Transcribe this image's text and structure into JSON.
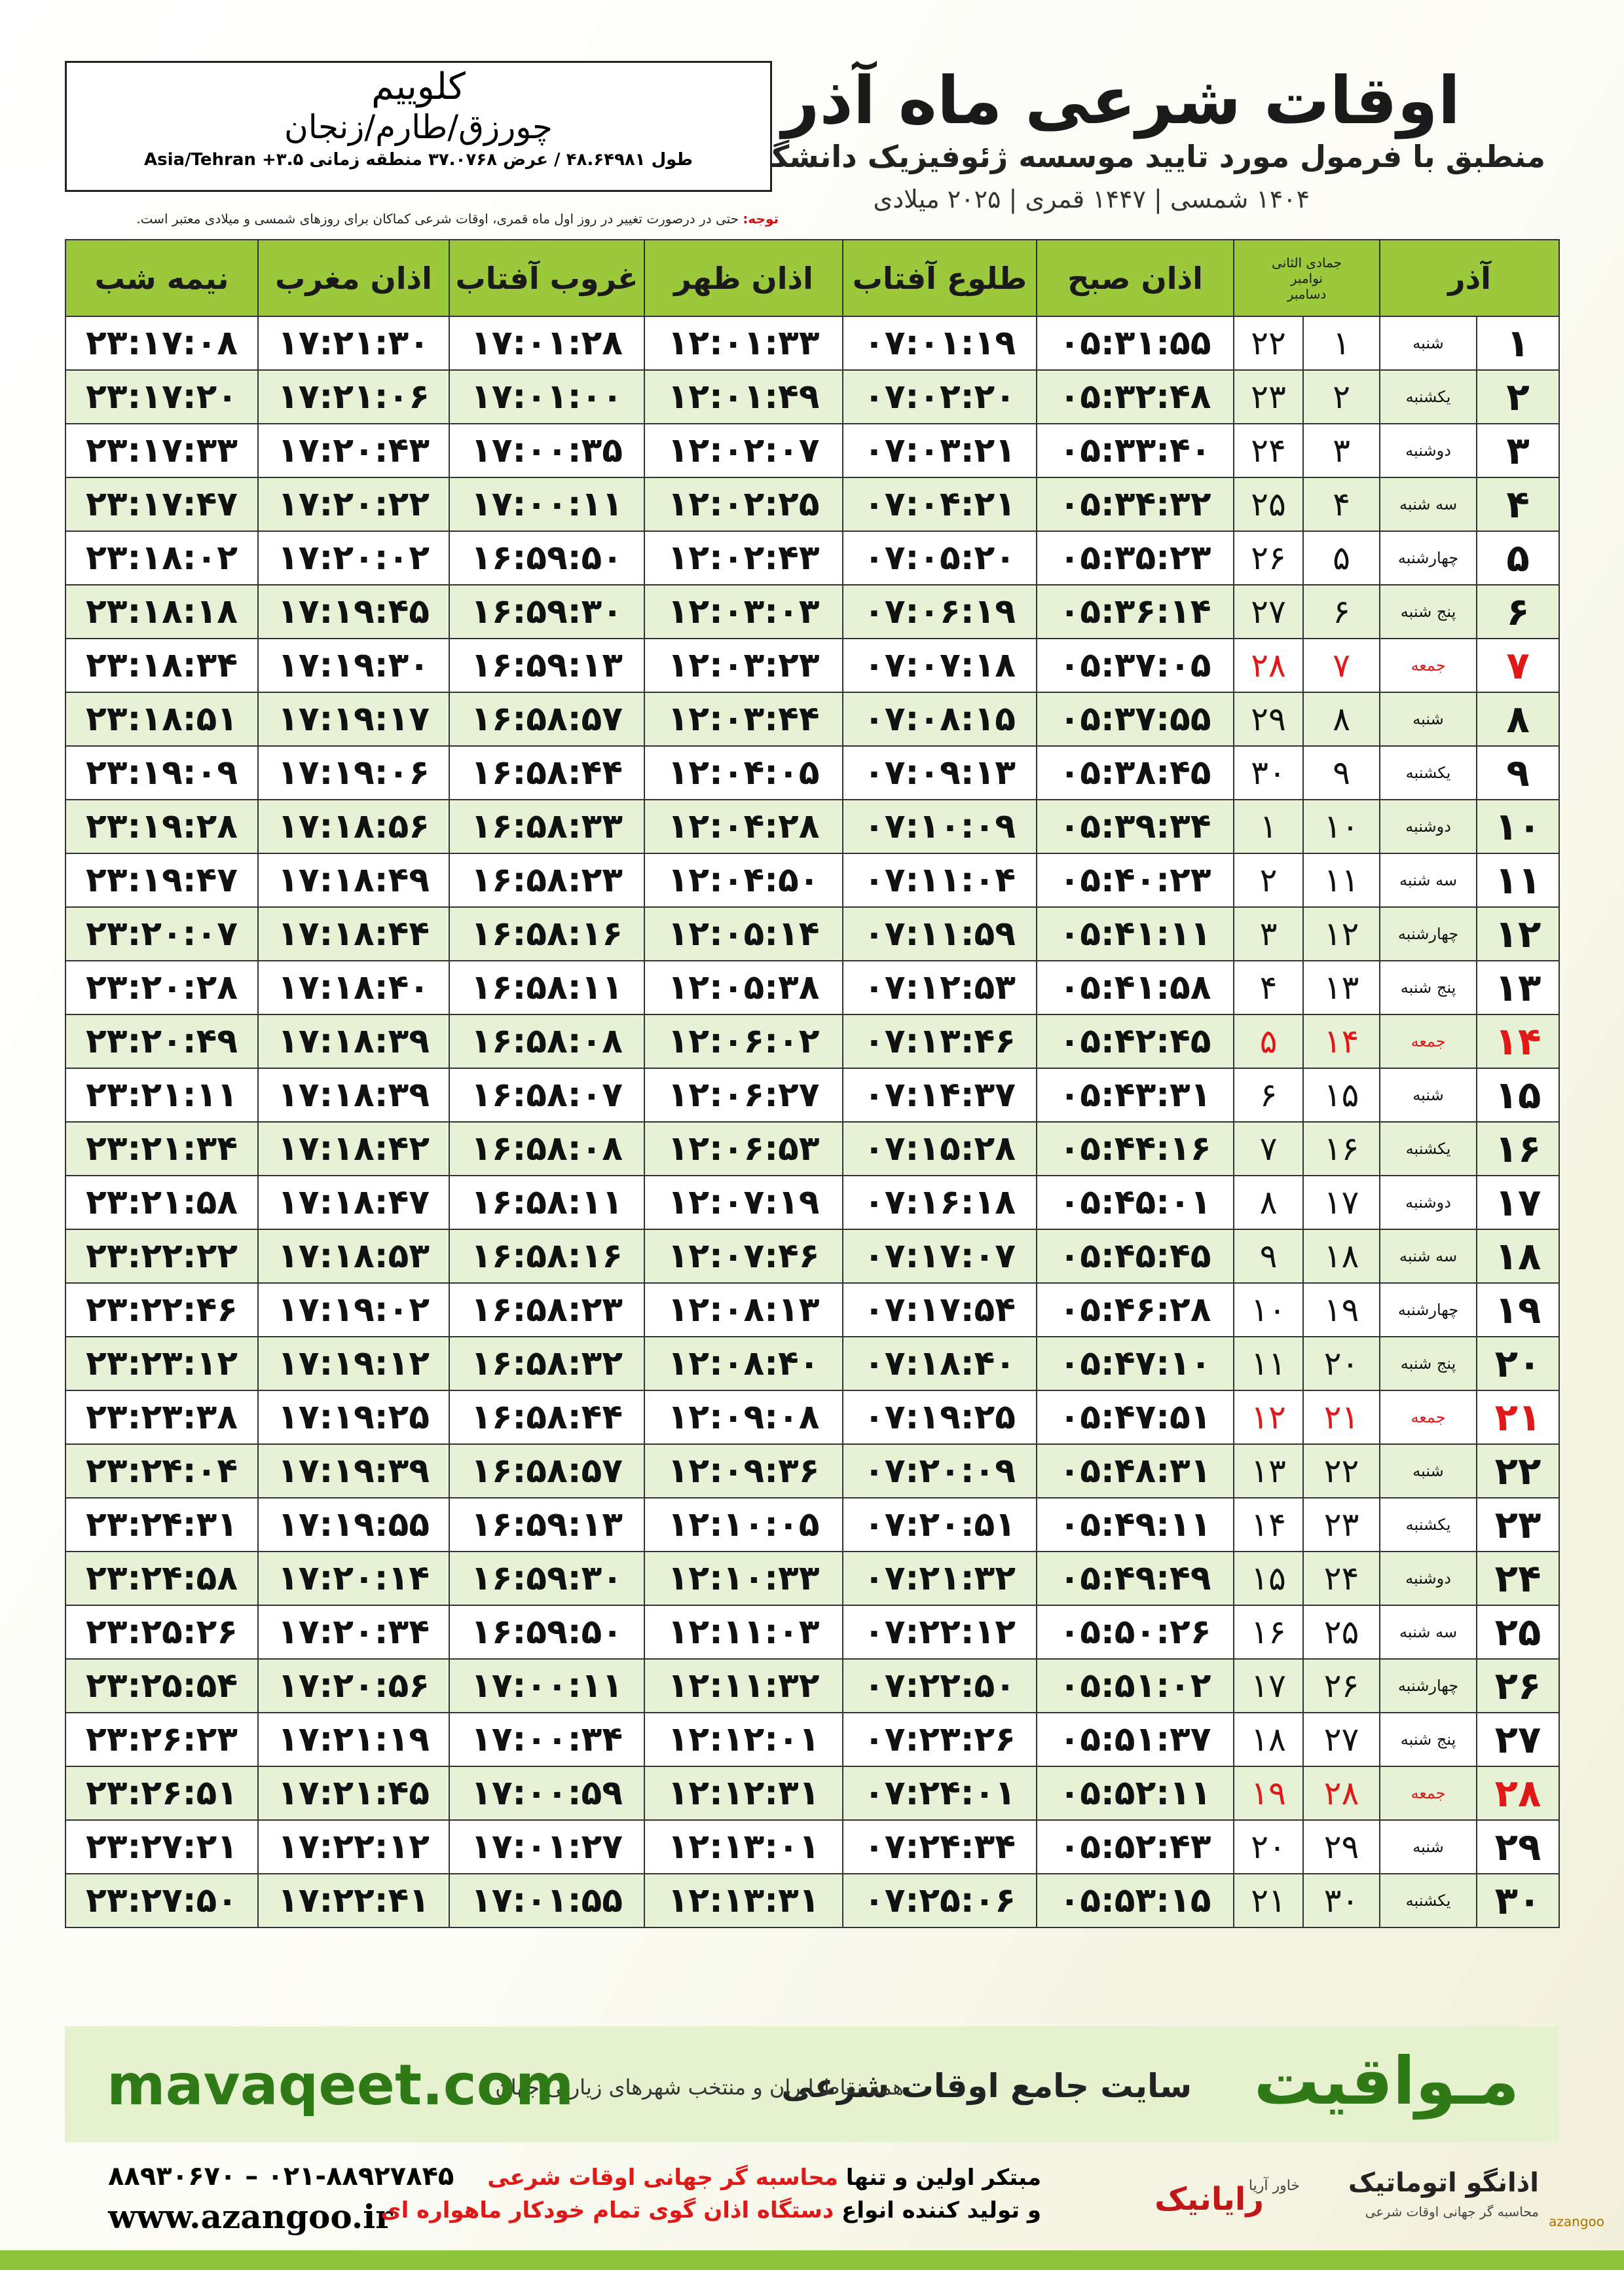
{
  "header": {
    "title": "اوقات شرعی ماه آذر",
    "subtitle": "منطبق با فرمول مورد تایید موسسه ژئوفیزیک دانشگاه تهران",
    "dates": "۱۴۰۴ شمسی | ۱۴۴۷ قمری | ۲۰۲۵ میلادی"
  },
  "location": {
    "name": "کلوییم",
    "region": "چورزق/طارم/زنجان",
    "coords": "طول ۴۸.۶۴۹۸۱ / عرض ۳۷.۰۷۶۸ منطقه زمانی ۳.۵+ Asia/Tehran"
  },
  "note": {
    "label": "توجه:",
    "text": "حتی در درصورت تغییر در روز اول ماه قمری، اوقات شرعی کماکان برای روزهای شمسی و میلادی معتبر است."
  },
  "table": {
    "header": {
      "month": "آذر",
      "lunar_month": "جمادی الثانی",
      "greg_months": [
        "نوامبر",
        "دسامبر"
      ],
      "times": [
        "اذان صبح",
        "طلوع آفتاب",
        "اذان ظهر",
        "غروب آفتاب",
        "اذان مغرب",
        "نیمه شب"
      ]
    },
    "rows": [
      [
        "۱",
        "شنبه",
        "۱",
        "۲۲",
        "۰۵:۳۱:۵۵",
        "۰۷:۰۱:۱۹",
        "۱۲:۰۱:۳۳",
        "۱۷:۰۱:۲۸",
        "۱۷:۲۱:۳۰",
        "۲۳:۱۷:۰۸"
      ],
      [
        "۲",
        "یکشنبه",
        "۲",
        "۲۳",
        "۰۵:۳۲:۴۸",
        "۰۷:۰۲:۲۰",
        "۱۲:۰۱:۴۹",
        "۱۷:۰۱:۰۰",
        "۱۷:۲۱:۰۶",
        "۲۳:۱۷:۲۰"
      ],
      [
        "۳",
        "دوشنبه",
        "۳",
        "۲۴",
        "۰۵:۳۳:۴۰",
        "۰۷:۰۳:۲۱",
        "۱۲:۰۲:۰۷",
        "۱۷:۰۰:۳۵",
        "۱۷:۲۰:۴۳",
        "۲۳:۱۷:۳۳"
      ],
      [
        "۴",
        "سه شنبه",
        "۴",
        "۲۵",
        "۰۵:۳۴:۳۲",
        "۰۷:۰۴:۲۱",
        "۱۲:۰۲:۲۵",
        "۱۷:۰۰:۱۱",
        "۱۷:۲۰:۲۲",
        "۲۳:۱۷:۴۷"
      ],
      [
        "۵",
        "چهارشنبه",
        "۵",
        "۲۶",
        "۰۵:۳۵:۲۳",
        "۰۷:۰۵:۲۰",
        "۱۲:۰۲:۴۳",
        "۱۶:۵۹:۵۰",
        "۱۷:۲۰:۰۲",
        "۲۳:۱۸:۰۲"
      ],
      [
        "۶",
        "پنج شنبه",
        "۶",
        "۲۷",
        "۰۵:۳۶:۱۴",
        "۰۷:۰۶:۱۹",
        "۱۲:۰۳:۰۳",
        "۱۶:۵۹:۳۰",
        "۱۷:۱۹:۴۵",
        "۲۳:۱۸:۱۸"
      ],
      [
        "۷",
        "جمعه",
        "۷",
        "۲۸",
        "۰۵:۳۷:۰۵",
        "۰۷:۰۷:۱۸",
        "۱۲:۰۳:۲۳",
        "۱۶:۵۹:۱۳",
        "۱۷:۱۹:۳۰",
        "۲۳:۱۸:۳۴"
      ],
      [
        "۸",
        "شنبه",
        "۸",
        "۲۹",
        "۰۵:۳۷:۵۵",
        "۰۷:۰۸:۱۵",
        "۱۲:۰۳:۴۴",
        "۱۶:۵۸:۵۷",
        "۱۷:۱۹:۱۷",
        "۲۳:۱۸:۵۱"
      ],
      [
        "۹",
        "یکشنبه",
        "۹",
        "۳۰",
        "۰۵:۳۸:۴۵",
        "۰۷:۰۹:۱۳",
        "۱۲:۰۴:۰۵",
        "۱۶:۵۸:۴۴",
        "۱۷:۱۹:۰۶",
        "۲۳:۱۹:۰۹"
      ],
      [
        "۱۰",
        "دوشنبه",
        "۱۰",
        "۱",
        "۰۵:۳۹:۳۴",
        "۰۷:۱۰:۰۹",
        "۱۲:۰۴:۲۸",
        "۱۶:۵۸:۳۳",
        "۱۷:۱۸:۵۶",
        "۲۳:۱۹:۲۸"
      ],
      [
        "۱۱",
        "سه شنبه",
        "۱۱",
        "۲",
        "۰۵:۴۰:۲۳",
        "۰۷:۱۱:۰۴",
        "۱۲:۰۴:۵۰",
        "۱۶:۵۸:۲۳",
        "۱۷:۱۸:۴۹",
        "۲۳:۱۹:۴۷"
      ],
      [
        "۱۲",
        "چهارشنبه",
        "۱۲",
        "۳",
        "۰۵:۴۱:۱۱",
        "۰۷:۱۱:۵۹",
        "۱۲:۰۵:۱۴",
        "۱۶:۵۸:۱۶",
        "۱۷:۱۸:۴۴",
        "۲۳:۲۰:۰۷"
      ],
      [
        "۱۳",
        "پنج شنبه",
        "۱۳",
        "۴",
        "۰۵:۴۱:۵۸",
        "۰۷:۱۲:۵۳",
        "۱۲:۰۵:۳۸",
        "۱۶:۵۸:۱۱",
        "۱۷:۱۸:۴۰",
        "۲۳:۲۰:۲۸"
      ],
      [
        "۱۴",
        "جمعه",
        "۱۴",
        "۵",
        "۰۵:۴۲:۴۵",
        "۰۷:۱۳:۴۶",
        "۱۲:۰۶:۰۲",
        "۱۶:۵۸:۰۸",
        "۱۷:۱۸:۳۹",
        "۲۳:۲۰:۴۹"
      ],
      [
        "۱۵",
        "شنبه",
        "۱۵",
        "۶",
        "۰۵:۴۳:۳۱",
        "۰۷:۱۴:۳۷",
        "۱۲:۰۶:۲۷",
        "۱۶:۵۸:۰۷",
        "۱۷:۱۸:۳۹",
        "۲۳:۲۱:۱۱"
      ],
      [
        "۱۶",
        "یکشنبه",
        "۱۶",
        "۷",
        "۰۵:۴۴:۱۶",
        "۰۷:۱۵:۲۸",
        "۱۲:۰۶:۵۳",
        "۱۶:۵۸:۰۸",
        "۱۷:۱۸:۴۲",
        "۲۳:۲۱:۳۴"
      ],
      [
        "۱۷",
        "دوشنبه",
        "۱۷",
        "۸",
        "۰۵:۴۵:۰۱",
        "۰۷:۱۶:۱۸",
        "۱۲:۰۷:۱۹",
        "۱۶:۵۸:۱۱",
        "۱۷:۱۸:۴۷",
        "۲۳:۲۱:۵۸"
      ],
      [
        "۱۸",
        "سه شنبه",
        "۱۸",
        "۹",
        "۰۵:۴۵:۴۵",
        "۰۷:۱۷:۰۷",
        "۱۲:۰۷:۴۶",
        "۱۶:۵۸:۱۶",
        "۱۷:۱۸:۵۳",
        "۲۳:۲۲:۲۲"
      ],
      [
        "۱۹",
        "چهارشنبه",
        "۱۹",
        "۱۰",
        "۰۵:۴۶:۲۸",
        "۰۷:۱۷:۵۴",
        "۱۲:۰۸:۱۳",
        "۱۶:۵۸:۲۳",
        "۱۷:۱۹:۰۲",
        "۲۳:۲۲:۴۶"
      ],
      [
        "۲۰",
        "پنج شنبه",
        "۲۰",
        "۱۱",
        "۰۵:۴۷:۱۰",
        "۰۷:۱۸:۴۰",
        "۱۲:۰۸:۴۰",
        "۱۶:۵۸:۳۲",
        "۱۷:۱۹:۱۲",
        "۲۳:۲۳:۱۲"
      ],
      [
        "۲۱",
        "جمعه",
        "۲۱",
        "۱۲",
        "۰۵:۴۷:۵۱",
        "۰۷:۱۹:۲۵",
        "۱۲:۰۹:۰۸",
        "۱۶:۵۸:۴۴",
        "۱۷:۱۹:۲۵",
        "۲۳:۲۳:۳۸"
      ],
      [
        "۲۲",
        "شنبه",
        "۲۲",
        "۱۳",
        "۰۵:۴۸:۳۱",
        "۰۷:۲۰:۰۹",
        "۱۲:۰۹:۳۶",
        "۱۶:۵۸:۵۷",
        "۱۷:۱۹:۳۹",
        "۲۳:۲۴:۰۴"
      ],
      [
        "۲۳",
        "یکشنبه",
        "۲۳",
        "۱۴",
        "۰۵:۴۹:۱۱",
        "۰۷:۲۰:۵۱",
        "۱۲:۱۰:۰۵",
        "۱۶:۵۹:۱۳",
        "۱۷:۱۹:۵۵",
        "۲۳:۲۴:۳۱"
      ],
      [
        "۲۴",
        "دوشنبه",
        "۲۴",
        "۱۵",
        "۰۵:۴۹:۴۹",
        "۰۷:۲۱:۳۲",
        "۱۲:۱۰:۳۳",
        "۱۶:۵۹:۳۰",
        "۱۷:۲۰:۱۴",
        "۲۳:۲۴:۵۸"
      ],
      [
        "۲۵",
        "سه شنبه",
        "۲۵",
        "۱۶",
        "۰۵:۵۰:۲۶",
        "۰۷:۲۲:۱۲",
        "۱۲:۱۱:۰۳",
        "۱۶:۵۹:۵۰",
        "۱۷:۲۰:۳۴",
        "۲۳:۲۵:۲۶"
      ],
      [
        "۲۶",
        "چهارشنبه",
        "۲۶",
        "۱۷",
        "۰۵:۵۱:۰۲",
        "۰۷:۲۲:۵۰",
        "۱۲:۱۱:۳۲",
        "۱۷:۰۰:۱۱",
        "۱۷:۲۰:۵۶",
        "۲۳:۲۵:۵۴"
      ],
      [
        "۲۷",
        "پنج شنبه",
        "۲۷",
        "۱۸",
        "۰۵:۵۱:۳۷",
        "۰۷:۲۳:۲۶",
        "۱۲:۱۲:۰۱",
        "۱۷:۰۰:۳۴",
        "۱۷:۲۱:۱۹",
        "۲۳:۲۶:۲۳"
      ],
      [
        "۲۸",
        "جمعه",
        "۲۸",
        "۱۹",
        "۰۵:۵۲:۱۱",
        "۰۷:۲۴:۰۱",
        "۱۲:۱۲:۳۱",
        "۱۷:۰۰:۵۹",
        "۱۷:۲۱:۴۵",
        "۲۳:۲۶:۵۱"
      ],
      [
        "۲۹",
        "شنبه",
        "۲۹",
        "۲۰",
        "۰۵:۵۲:۴۳",
        "۰۷:۲۴:۳۴",
        "۱۲:۱۳:۰۱",
        "۱۷:۰۱:۲۷",
        "۱۷:۲۲:۱۲",
        "۲۳:۲۷:۲۱"
      ],
      [
        "۳۰",
        "یکشنبه",
        "۳۰",
        "۲۱",
        "۰۵:۵۳:۱۵",
        "۰۷:۲۵:۰۶",
        "۱۲:۱۳:۳۱",
        "۱۷:۰۱:۵۵",
        "۱۷:۲۲:۴۱",
        "۲۳:۲۷:۵۰"
      ]
    ]
  },
  "banner": {
    "brand": "مـواقیت",
    "slogan": "سایت جامع اوقات شرعی",
    "scope": "همه نقاط ایران و منتخب شهرهای زیارتی جهان",
    "site": "mavaqeet.com"
  },
  "footer": {
    "phones": "۰۲۱-۸۸۹۲۷۸۴۵ – ۸۸۹۳۰۶۷۰",
    "web": "www.azangoo.ir",
    "line1_a": "مبتکر اولین و تنها",
    "line1_b": "محاسبه گر جهانی اوقات شرعی",
    "line2_a": "و تولید کننده انواع",
    "line2_b": "دستگاه اذان گوی تمام خودکار ماهواره ای",
    "logo1": "رایانیک",
    "logo1_sub": "خاور آریا",
    "logo2": "اذانگو اتوماتیک",
    "logo2_sub": "محاسبه گر جهانی اوقات شرعی",
    "logo2_en": "azangoo"
  }
}
